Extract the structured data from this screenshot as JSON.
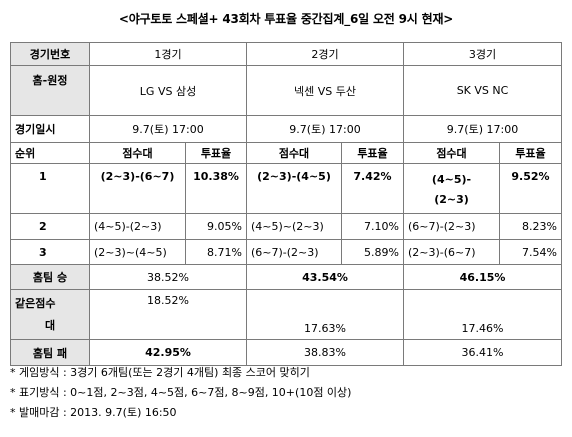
{
  "title": "<야구토토 스페셜+ 43회차 투표율 중간집계_6일 오전 9시 현재>",
  "labels": {
    "game_no": "경기번호",
    "home_away": "홈-원정",
    "game_datetime": "경기일시",
    "rank": "순위",
    "score_band": "점수대",
    "vote_rate": "투표율",
    "home_win": "홈팀 승",
    "draw_line1": "같은점수",
    "draw_line2": "대",
    "home_loss": "홈팀 패"
  },
  "games": [
    {
      "number": "1경기",
      "matchup": "LG VS 삼성",
      "datetime": "9.7(토) 17:00",
      "ranks": [
        {
          "rank": "1",
          "score": "(2~3)-(6~7)",
          "rate": "10.38%"
        },
        {
          "rank": "2",
          "score": "(4~5)-(2~3)",
          "rate": "9.05%"
        },
        {
          "rank": "3",
          "score": "(2~3)~(4~5)",
          "rate": "8.71%"
        }
      ],
      "home_win": "38.52%",
      "draw": "18.52%",
      "home_loss": "42.95%"
    },
    {
      "number": "2경기",
      "matchup": "넥센 VS 두산",
      "datetime": "9.7(토) 17:00",
      "ranks": [
        {
          "rank": "1",
          "score": "(2~3)-(4~5)",
          "rate": "7.42%"
        },
        {
          "rank": "2",
          "score": "(4~5)~(2~3)",
          "rate": "7.10%"
        },
        {
          "rank": "3",
          "score": "(6~7)-(2~3)",
          "rate": "5.89%"
        }
      ],
      "home_win": "43.54%",
      "draw": "17.63%",
      "home_loss": "38.83%"
    },
    {
      "number": "3경기",
      "matchup": "SK VS NC",
      "datetime": "9.7(토) 17:00",
      "ranks": [
        {
          "rank": "1",
          "score_line1": "(4~5)-",
          "score_line2": "(2~3)",
          "rate": "9.52%"
        },
        {
          "rank": "2",
          "score": "(6~7)-(2~3)",
          "rate": "8.23%"
        },
        {
          "rank": "3",
          "score": "(2~3)-(6~7)",
          "rate": "7.54%"
        }
      ],
      "home_win": "46.15%",
      "draw": "17.46%",
      "home_loss": "36.41%"
    }
  ],
  "notes": [
    "* 게임방식 : 3경기 6개팀(또는 2경기 4개팀) 최종 스코어 맞히기",
    "* 표기방식 : 0~1점, 2~3점, 4~5점, 6~7점, 8~9점, 10+(10점 이상)",
    "* 발매마감 : 2013. 9.7(토) 16:50"
  ]
}
